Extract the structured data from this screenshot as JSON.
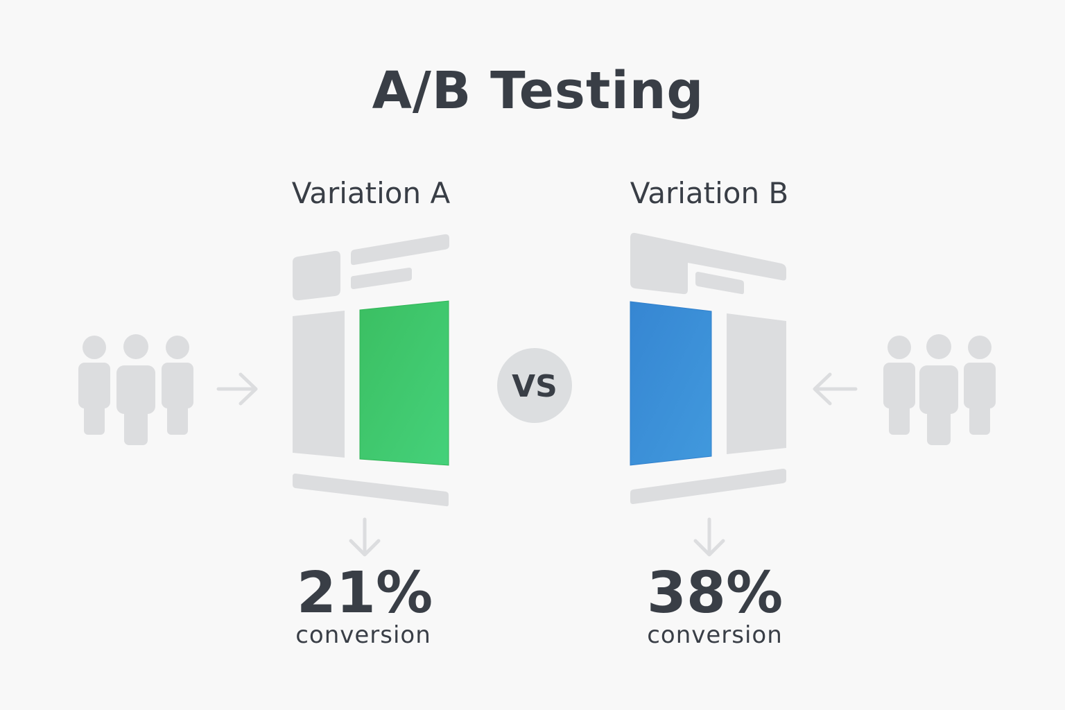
{
  "title": "A/B Testing",
  "vs_label": "VS",
  "variations": [
    {
      "label": "Variation A",
      "conversion_value": "21%",
      "conversion_label": "conversion",
      "accent_color": "#3fc768"
    },
    {
      "label": "Variation B",
      "conversion_value": "38%",
      "conversion_label": "conversion",
      "accent_color": "#3a8fd8"
    }
  ],
  "icons": [
    "users-group-icon",
    "arrow-right-icon",
    "arrow-left-icon",
    "arrow-down-icon",
    "page-wireframe-icon"
  ]
}
